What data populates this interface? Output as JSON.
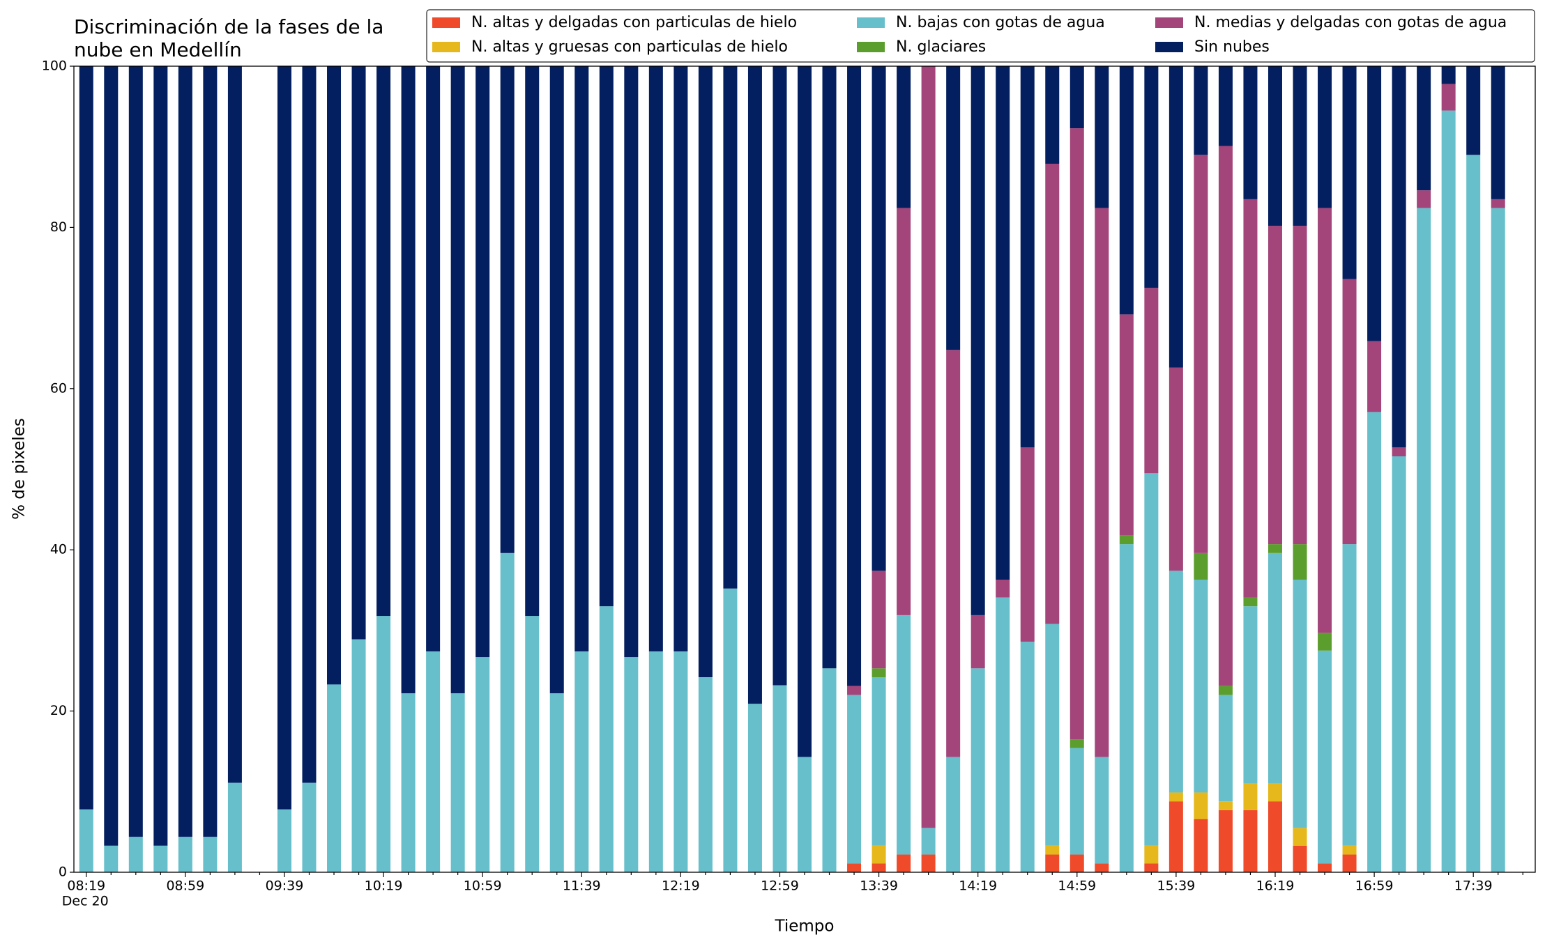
{
  "chart_data": {
    "type": "stacked_bar",
    "title": [
      "Discriminación de la fases de la",
      "nube en Medellín"
    ],
    "x_label": "Tiempo",
    "y_label": "% de pixeles",
    "x_sublabel": "Dec 20",
    "categories": [
      "08:19",
      null,
      null,
      null,
      "08:59",
      null,
      null,
      null,
      "09:39",
      null,
      null,
      null,
      "10:19",
      null,
      null,
      null,
      "10:59",
      null,
      null,
      null,
      "11:39",
      null,
      null,
      null,
      "12:19",
      null,
      null,
      null,
      "12:59",
      null,
      null,
      null,
      "13:39",
      null,
      null,
      null,
      "14:19",
      null,
      null,
      null,
      "14:59",
      null,
      null,
      null,
      "15:39",
      null,
      null,
      null,
      "16:19",
      null,
      null,
      null,
      "16:59",
      null,
      null,
      null,
      "17:39",
      null
    ],
    "ylim": [
      0,
      100
    ],
    "yticks": [
      0,
      20,
      40,
      60,
      80,
      100
    ],
    "grid": false,
    "legend": "top right",
    "series": [
      {
        "name": "N. altas y delgadas con particulas de hielo",
        "color": "#ef4a2a",
        "values": [
          0,
          0,
          0,
          0,
          0,
          0,
          0,
          null,
          0,
          0,
          0,
          0,
          0,
          0,
          0,
          0,
          0,
          0,
          0,
          0,
          0,
          0,
          0,
          0,
          0,
          0,
          0,
          0,
          0,
          0,
          0,
          1.1,
          1.1,
          2.2,
          2.2,
          0,
          0,
          0,
          0,
          2.2,
          2.2,
          1.1,
          0,
          1.1,
          8.8,
          6.6,
          7.7,
          7.7,
          8.8,
          3.3,
          1.1,
          2.2,
          0,
          0,
          0,
          0,
          0,
          0
        ]
      },
      {
        "name": "N. altas y gruesas con particulas de hielo",
        "color": "#e6b81c",
        "values": [
          0,
          0,
          0,
          0,
          0,
          0,
          0,
          null,
          0,
          0,
          0,
          0,
          0,
          0,
          0,
          0,
          0,
          0,
          0,
          0,
          0,
          0,
          0,
          0,
          0,
          0,
          0,
          0,
          0,
          0,
          0,
          0,
          2.2,
          0,
          0,
          0,
          0,
          0,
          0,
          1.1,
          0,
          0,
          0,
          2.2,
          1.1,
          3.3,
          1.1,
          3.3,
          2.2,
          2.2,
          0,
          1.1,
          0,
          0,
          0,
          0,
          0,
          0
        ]
      },
      {
        "name": "N. bajas con gotas de agua",
        "color": "#66bfcb",
        "values": [
          7.8,
          3.3,
          4.4,
          3.3,
          4.4,
          4.4,
          11.1,
          null,
          7.8,
          11.1,
          23.3,
          28.9,
          31.8,
          22.2,
          27.4,
          22.2,
          26.7,
          39.6,
          31.8,
          22.2,
          27.4,
          33.0,
          26.7,
          27.4,
          27.4,
          24.2,
          35.2,
          20.9,
          23.2,
          14.3,
          25.3,
          20.9,
          20.9,
          29.7,
          3.3,
          14.3,
          25.3,
          34.1,
          28.6,
          27.5,
          13.2,
          13.2,
          40.7,
          46.2,
          27.5,
          26.4,
          13.2,
          22.0,
          28.6,
          30.8,
          26.4,
          37.4,
          57.1,
          51.6,
          82.4,
          94.5,
          89.0,
          82.4
        ]
      },
      {
        "name": "N. glaciares",
        "color": "#5c9e2e",
        "values": [
          0,
          0,
          0,
          0,
          0,
          0,
          0,
          null,
          0,
          0,
          0,
          0,
          0,
          0,
          0,
          0,
          0,
          0,
          0,
          0,
          0,
          0,
          0,
          0,
          0,
          0,
          0,
          0,
          0,
          0,
          0,
          0,
          1.1,
          0,
          0,
          0,
          0,
          0,
          0,
          0,
          1.1,
          0,
          1.1,
          0,
          0,
          3.3,
          1.1,
          1.1,
          1.1,
          4.4,
          2.2,
          0,
          0,
          0,
          0,
          0,
          0,
          0
        ]
      },
      {
        "name": "N. medias y delgadas con gotas de agua",
        "color": "#a3457a",
        "values": [
          0,
          0,
          0,
          0,
          0,
          0,
          0,
          null,
          0,
          0,
          0,
          0,
          0,
          0,
          0,
          0,
          0,
          0,
          0,
          0,
          0,
          0,
          0,
          0,
          0,
          0,
          0,
          0,
          0,
          0,
          0,
          1.1,
          12.1,
          50.5,
          94.5,
          50.5,
          6.6,
          2.2,
          24.1,
          57.1,
          75.8,
          68.1,
          27.4,
          23.0,
          25.2,
          49.4,
          67.0,
          49.4,
          39.5,
          39.5,
          52.7,
          32.9,
          8.8,
          1.1,
          2.2,
          3.3,
          0,
          1.1
        ]
      },
      {
        "name": "Sin nubes",
        "color": "#031f60",
        "values": [
          92.2,
          96.7,
          95.6,
          96.7,
          95.6,
          95.6,
          88.9,
          null,
          92.2,
          88.9,
          76.7,
          71.1,
          68.2,
          77.8,
          72.6,
          77.8,
          73.3,
          60.4,
          68.2,
          77.8,
          72.6,
          67.0,
          73.3,
          72.6,
          72.6,
          75.8,
          64.8,
          79.1,
          76.8,
          85.7,
          74.7,
          76.9,
          62.6,
          17.6,
          0,
          35.2,
          68.1,
          63.7,
          47.3,
          12.1,
          7.7,
          17.6,
          30.8,
          27.5,
          37.4,
          11.0,
          9.9,
          16.5,
          19.8,
          19.8,
          17.6,
          26.4,
          34.1,
          47.3,
          15.4,
          2.2,
          11.0,
          16.5
        ]
      }
    ]
  }
}
